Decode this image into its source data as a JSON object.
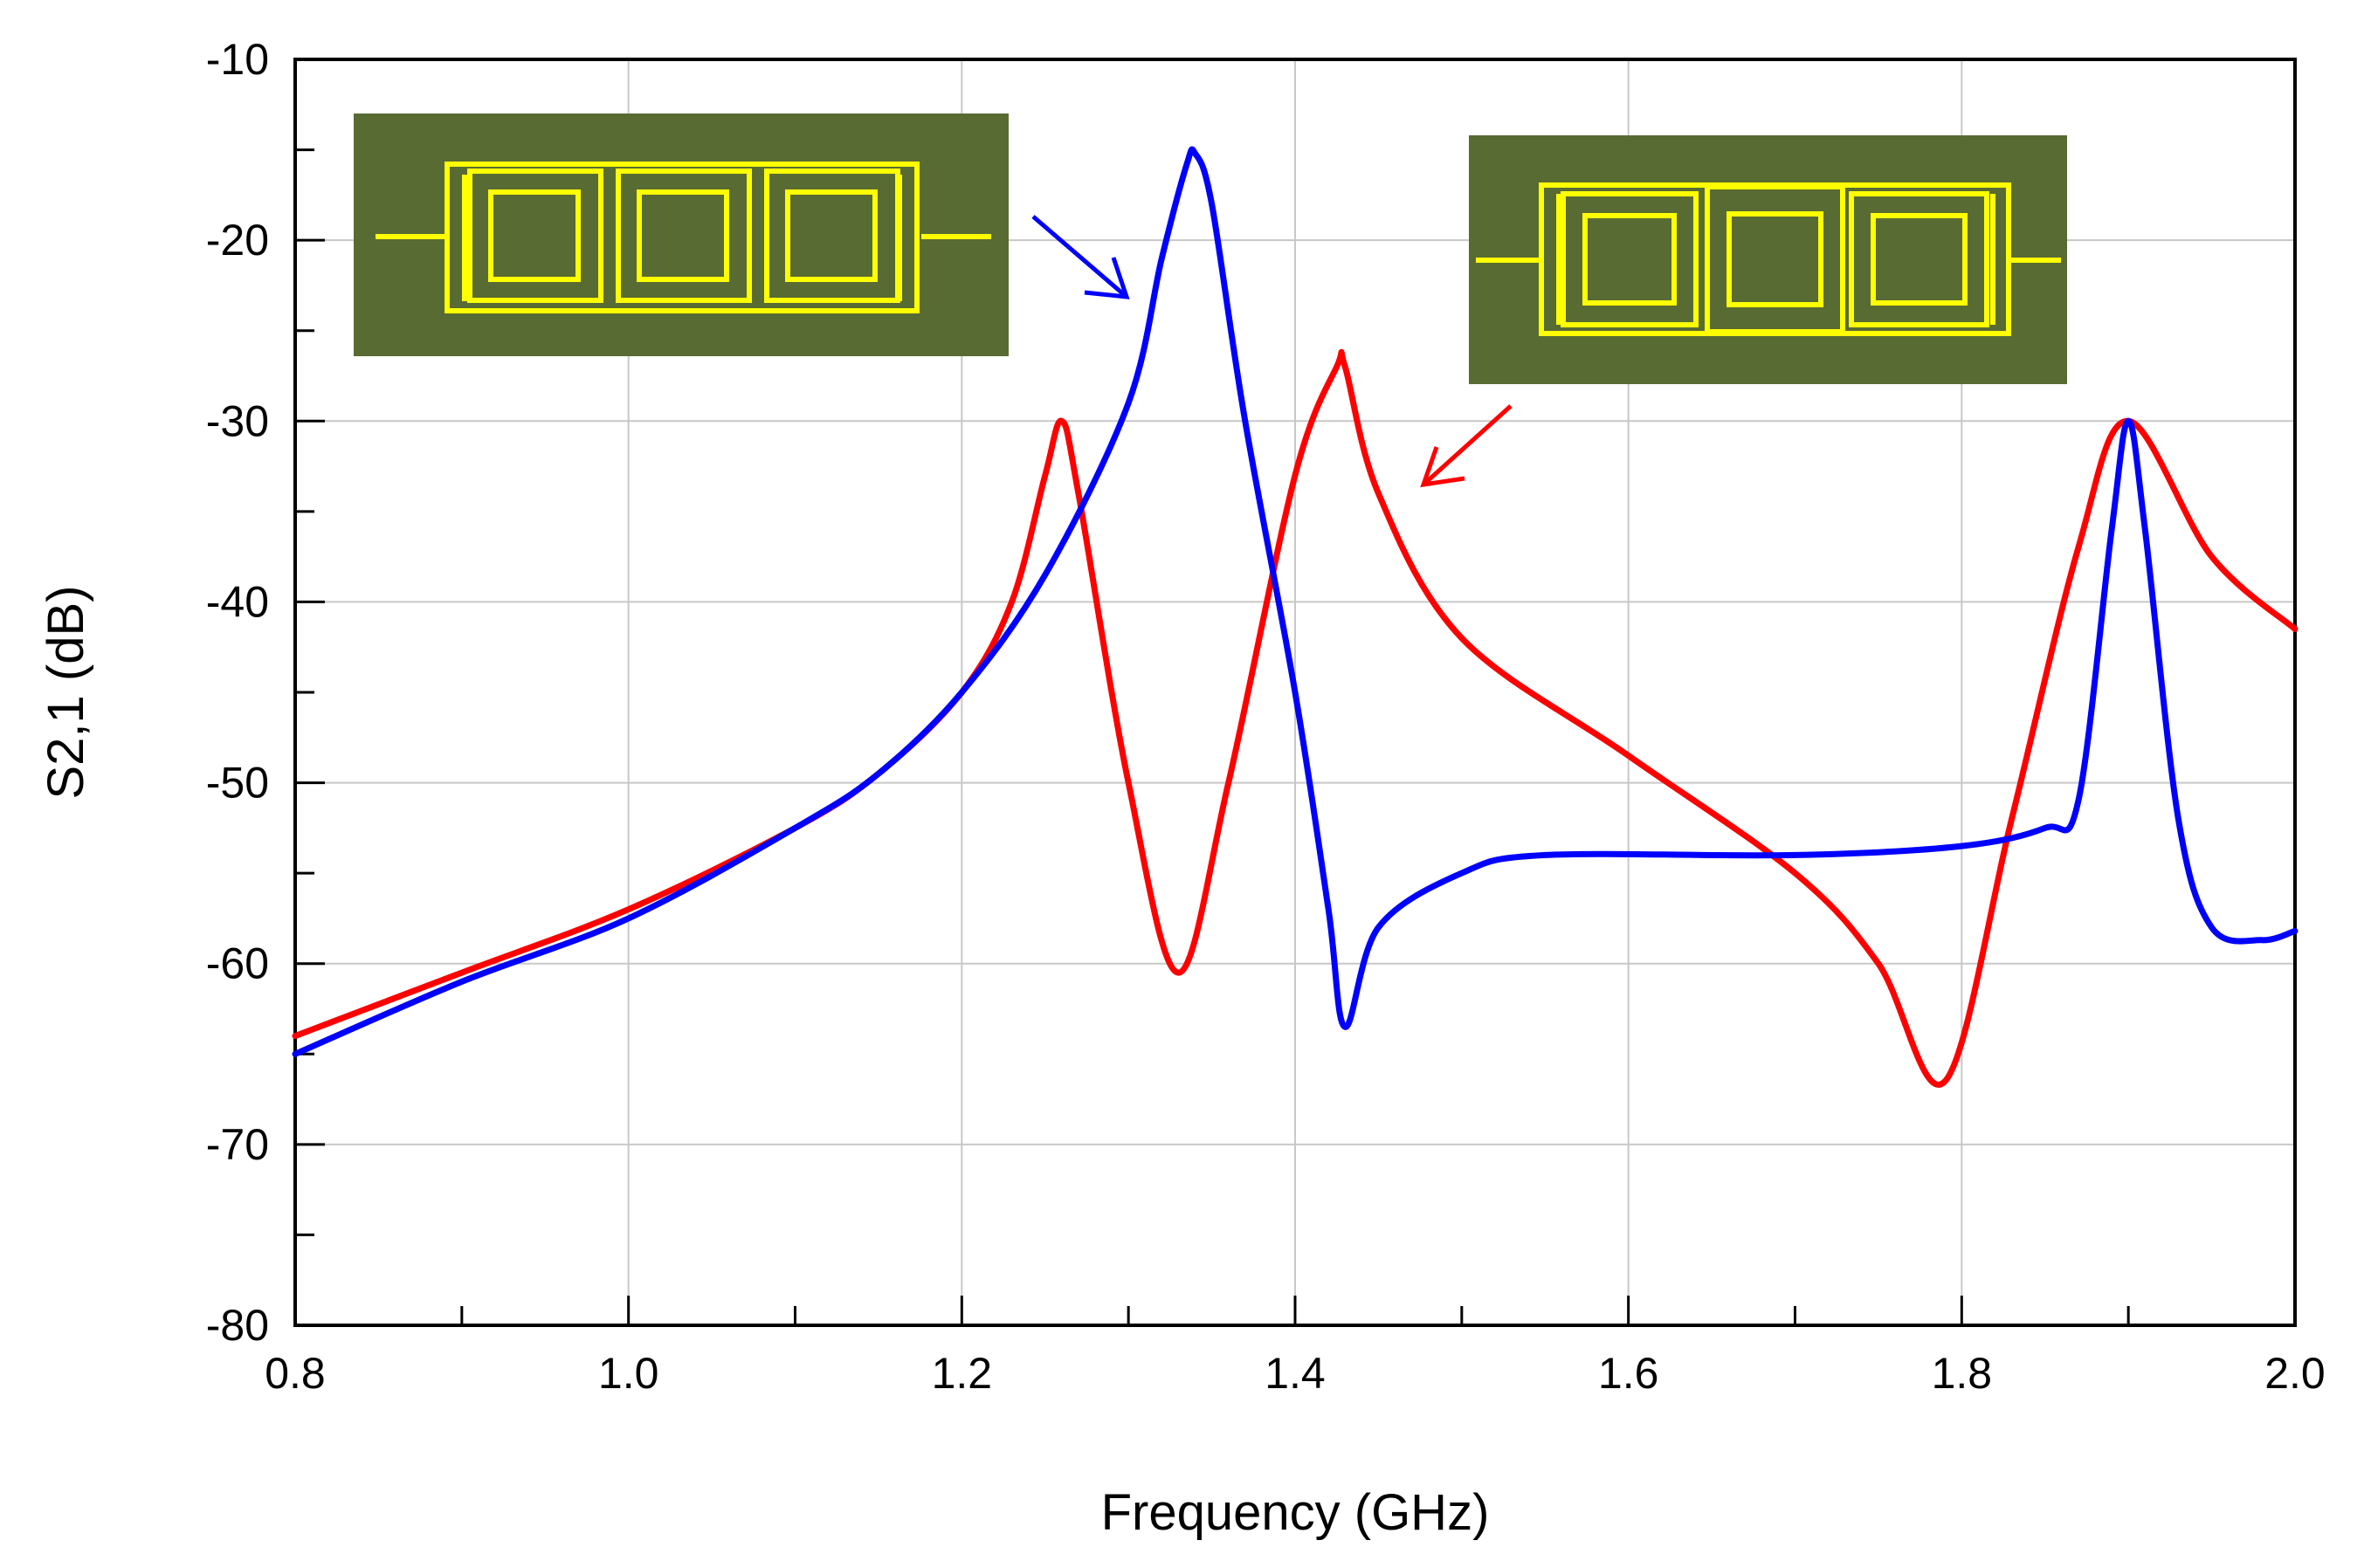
{
  "chart_data": {
    "type": "line",
    "title": "",
    "xlabel": "Frequency (GHz)",
    "ylabel": "S2,1 (dB)",
    "xlim": [
      0.8,
      2.0
    ],
    "ylim": [
      -80,
      -10
    ],
    "x_ticks": [
      "0.8",
      "1.0",
      "1.2",
      "1.4",
      "1.6",
      "1.8",
      "2.0"
    ],
    "y_ticks": [
      "-10",
      "-20",
      "-30",
      "-40",
      "-50",
      "-60",
      "-70",
      "-80"
    ],
    "grid": true,
    "legend": "none",
    "series": [
      {
        "color": "#ff0000",
        "x": [
          0.8,
          0.9,
          1.0,
          1.1,
          1.15,
          1.2,
          1.23,
          1.25,
          1.26,
          1.27,
          1.3,
          1.33,
          1.36,
          1.4,
          1.425,
          1.43,
          1.45,
          1.5,
          1.6,
          1.7,
          1.75,
          1.79,
          1.83,
          1.87,
          1.9,
          1.95,
          2.0
        ],
        "y": [
          -64,
          -60.5,
          -57,
          -52.5,
          -49.5,
          -45,
          -40,
          -33,
          -30,
          -34,
          -50,
          -60.5,
          -50,
          -33,
          -27,
          -27,
          -34,
          -42,
          -48.5,
          -55,
          -60,
          -66.5,
          -52,
          -37,
          -30,
          -37.5,
          -41.5
        ]
      },
      {
        "color": "#0000ff",
        "x": [
          0.8,
          0.9,
          1.0,
          1.1,
          1.15,
          1.2,
          1.25,
          1.3,
          1.32,
          1.335,
          1.34,
          1.35,
          1.37,
          1.4,
          1.42,
          1.43,
          1.45,
          1.5,
          1.55,
          1.7,
          1.8,
          1.85,
          1.87,
          1.89,
          1.9,
          1.91,
          1.93,
          1.95,
          1.98,
          2.0
        ],
        "y": [
          -65,
          -61,
          -57.5,
          -52.5,
          -49.5,
          -45,
          -38.5,
          -29,
          -21,
          -15.8,
          -15.2,
          -18,
          -30,
          -45,
          -57,
          -63.5,
          -58,
          -55,
          -54,
          -54,
          -53.5,
          -52.5,
          -51,
          -36,
          -30,
          -36,
          -52,
          -58,
          -58.7,
          -58.2
        ]
      }
    ]
  }
}
